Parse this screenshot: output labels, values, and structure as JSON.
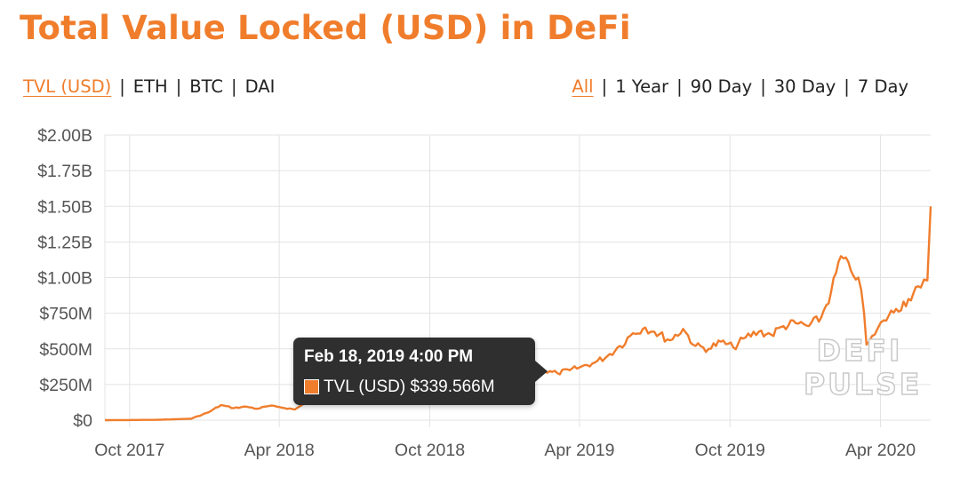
{
  "colors": {
    "accent": "#f07d2c",
    "line": "#f07d2c",
    "grid": "#e3e3e3",
    "tooltip_bg": "#2f2f2f"
  },
  "header": {
    "title": "Total Value Locked (USD) in DeFi"
  },
  "metric_tabs": [
    {
      "label": "TVL (USD)",
      "active": true
    },
    {
      "label": "ETH",
      "active": false
    },
    {
      "label": "BTC",
      "active": false
    },
    {
      "label": "DAI",
      "active": false
    }
  ],
  "range_tabs": [
    {
      "label": "All",
      "active": true
    },
    {
      "label": "1 Year",
      "active": false
    },
    {
      "label": "90 Day",
      "active": false
    },
    {
      "label": "30 Day",
      "active": false
    },
    {
      "label": "7 Day",
      "active": false
    }
  ],
  "tooltip": {
    "date": "Feb 18, 2019 4:00 PM",
    "series": "TVL (USD)",
    "value": "$339.566M"
  },
  "watermark": {
    "line1": "DEFI",
    "line2": "PULSE"
  },
  "chart_data": {
    "type": "line",
    "title": "Total Value Locked (USD) in DeFi",
    "xlabel": "",
    "ylabel": "",
    "ylim": [
      0,
      2000000000
    ],
    "y_ticks": [
      {
        "value": 0,
        "label": "$0"
      },
      {
        "value": 250000000,
        "label": "$250M"
      },
      {
        "value": 500000000,
        "label": "$500M"
      },
      {
        "value": 750000000,
        "label": "$750M"
      },
      {
        "value": 1000000000,
        "label": "$1.00B"
      },
      {
        "value": 1250000000,
        "label": "$1.25B"
      },
      {
        "value": 1500000000,
        "label": "$1.50B"
      },
      {
        "value": 1750000000,
        "label": "$1.75B"
      },
      {
        "value": 2000000000,
        "label": "$2.00B"
      }
    ],
    "x_ticks": [
      {
        "value": "2017-10-01",
        "label": "Oct 2017"
      },
      {
        "value": "2018-04-01",
        "label": "Apr 2018"
      },
      {
        "value": "2018-10-01",
        "label": "Oct 2018"
      },
      {
        "value": "2019-04-01",
        "label": "Apr 2019"
      },
      {
        "value": "2019-10-01",
        "label": "Oct 2019"
      },
      {
        "value": "2020-04-01",
        "label": "Apr 2020"
      }
    ],
    "xlim": [
      "2017-09-01",
      "2020-06-01"
    ],
    "grid": true,
    "series": [
      {
        "name": "TVL (USD)",
        "x": [
          "2017-09-01",
          "2017-11-01",
          "2017-12-15",
          "2018-01-05",
          "2018-01-20",
          "2018-02-05",
          "2018-02-20",
          "2018-03-05",
          "2018-03-20",
          "2018-04-01",
          "2018-04-20",
          "2018-05-01",
          "2018-05-20",
          "2018-06-10",
          "2018-07-01",
          "2018-08-01",
          "2018-09-01",
          "2018-10-01",
          "2018-11-01",
          "2018-12-01",
          "2019-01-01",
          "2019-02-01",
          "2019-02-18",
          "2019-03-05",
          "2019-03-20",
          "2019-04-01",
          "2019-04-20",
          "2019-05-05",
          "2019-05-20",
          "2019-06-05",
          "2019-06-20",
          "2019-07-01",
          "2019-07-20",
          "2019-08-05",
          "2019-08-20",
          "2019-09-05",
          "2019-09-20",
          "2019-10-05",
          "2019-10-20",
          "2019-11-05",
          "2019-11-20",
          "2019-12-05",
          "2019-12-20",
          "2020-01-05",
          "2020-01-20",
          "2020-02-01",
          "2020-02-13",
          "2020-02-25",
          "2020-03-05",
          "2020-03-12",
          "2020-03-15",
          "2020-03-25",
          "2020-04-05",
          "2020-04-20",
          "2020-05-05",
          "2020-05-20",
          "2020-05-28",
          "2020-06-01"
        ],
        "values": [
          0,
          2000000,
          10000000,
          55000000,
          105000000,
          85000000,
          95000000,
          80000000,
          100000000,
          92000000,
          75000000,
          115000000,
          145000000,
          205000000,
          240000000,
          265000000,
          275000000,
          285000000,
          290000000,
          285000000,
          280000000,
          290000000,
          339566000,
          330000000,
          350000000,
          370000000,
          405000000,
          450000000,
          520000000,
          610000000,
          650000000,
          620000000,
          560000000,
          640000000,
          520000000,
          500000000,
          550000000,
          510000000,
          580000000,
          620000000,
          600000000,
          660000000,
          680000000,
          660000000,
          720000000,
          900000000,
          1150000000,
          1050000000,
          1000000000,
          750000000,
          530000000,
          600000000,
          700000000,
          780000000,
          850000000,
          930000000,
          980000000,
          1500000000
        ]
      }
    ]
  }
}
